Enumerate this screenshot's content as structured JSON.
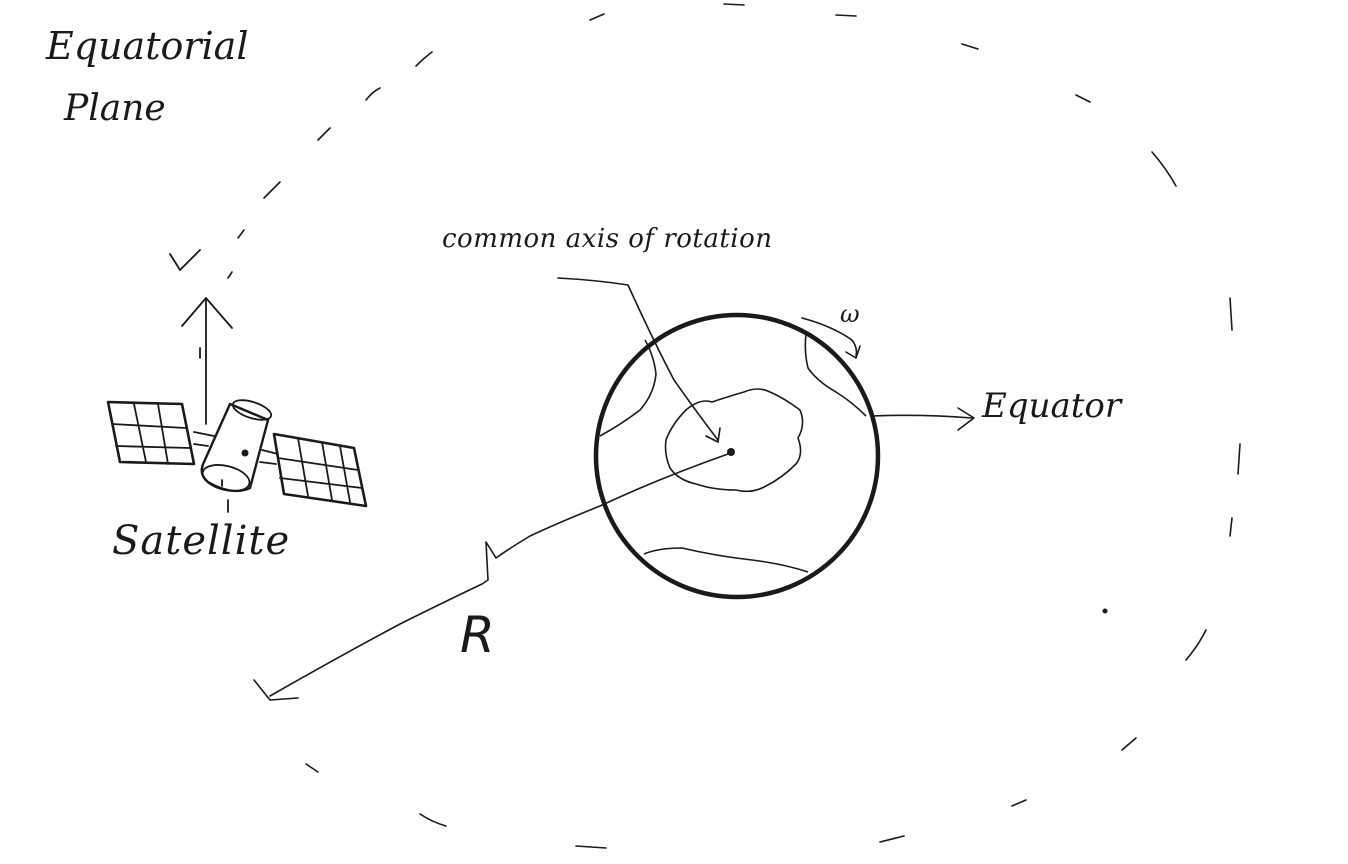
{
  "labels": {
    "equatorial_plane_line1": "Equatorial",
    "equatorial_plane_line2": "Plane",
    "common_axis": "common axis of rotation",
    "omega": "ω",
    "equator": "Equator",
    "satellite": "Satellite",
    "radius": "R"
  },
  "colors": {
    "ink": "#1a1a1a",
    "background": "#ffffff"
  },
  "icons": {
    "satellite": "satellite-icon",
    "earth": "earth-icon"
  }
}
